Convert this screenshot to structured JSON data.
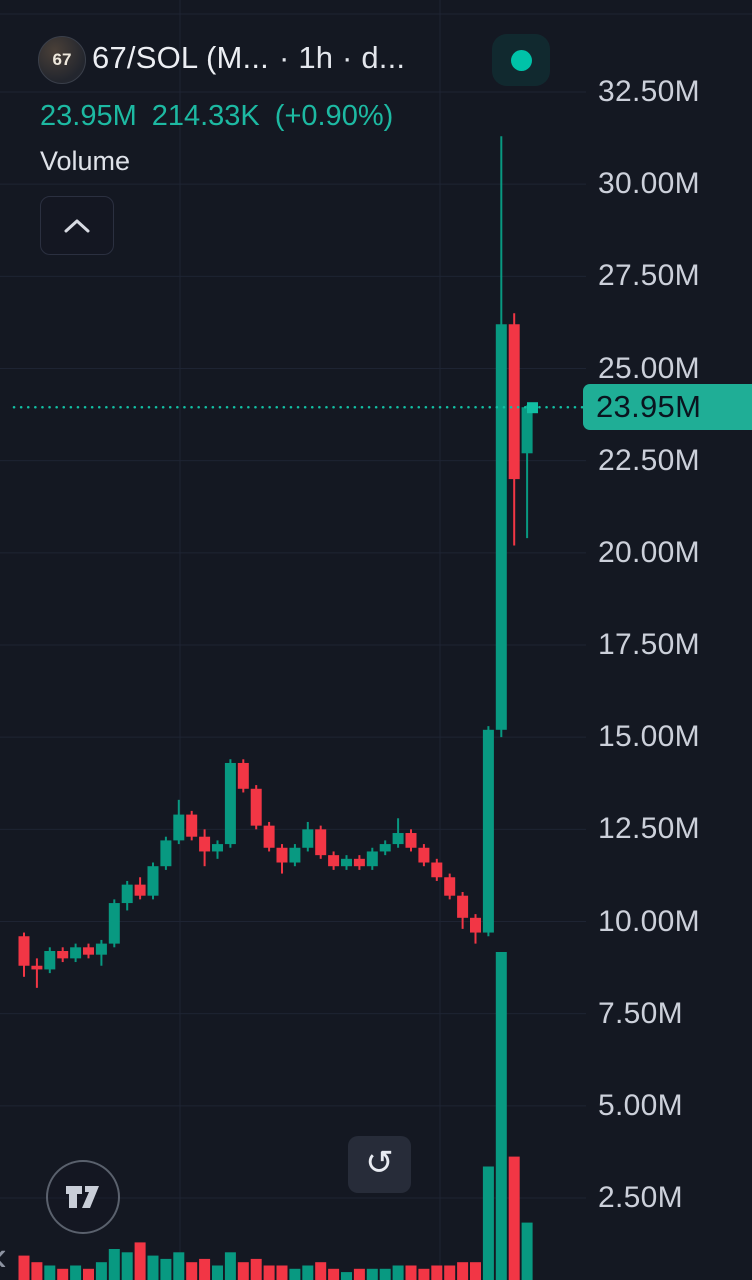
{
  "colors": {
    "background": "#141822",
    "grid": "#1e2433",
    "up": "#089981",
    "down": "#f23645",
    "accent": "#1db9a2",
    "dotted_line": "#12bfa3",
    "axis_text": "#ccd0da",
    "badge_bg": "#1fae96",
    "badge_text": "#0a141f"
  },
  "header": {
    "symbol_badge": "67",
    "title": "67/SOL (M...",
    "subtitle": "· 1h · d...",
    "status": "live"
  },
  "stats": {
    "price": "23.95M",
    "change_abs": "214.33K",
    "change_pct": "(+0.90%)"
  },
  "indicator_label": "Volume",
  "controls": {
    "collapse_icon": "chevron-up",
    "refresh_icon": "↺",
    "back_icon": "‹",
    "logo": "tradingview"
  },
  "chart_data": {
    "type": "candlestick",
    "symbol": "67/SOL",
    "interval": "1h",
    "legend": [
      "Volume"
    ],
    "grid": true,
    "y_axis_side": "right",
    "ylim": [
      0.6,
      33.8
    ],
    "y_ticks": [
      {
        "label": "32.50M",
        "value": 32.5
      },
      {
        "label": "30.00M",
        "value": 30.0
      },
      {
        "label": "27.50M",
        "value": 27.5
      },
      {
        "label": "25.00M",
        "value": 25.0
      },
      {
        "label": "22.50M",
        "value": 22.5
      },
      {
        "label": "20.00M",
        "value": 20.0
      },
      {
        "label": "17.50M",
        "value": 17.5
      },
      {
        "label": "15.00M",
        "value": 15.0
      },
      {
        "label": "12.50M",
        "value": 12.5
      },
      {
        "label": "10.00M",
        "value": 10.0
      },
      {
        "label": "7.50M",
        "value": 7.5
      },
      {
        "label": "5.00M",
        "value": 5.0
      },
      {
        "label": "2.50M",
        "value": 2.5
      }
    ],
    "current_price": {
      "value": 23.95,
      "label": "23.95M"
    },
    "candles_ohlc_millions": [
      [
        9.6,
        9.7,
        8.5,
        8.8
      ],
      [
        8.8,
        9.0,
        8.2,
        8.7
      ],
      [
        8.7,
        9.3,
        8.6,
        9.2
      ],
      [
        9.2,
        9.3,
        8.9,
        9.0
      ],
      [
        9.0,
        9.4,
        8.9,
        9.3
      ],
      [
        9.3,
        9.4,
        9.0,
        9.1
      ],
      [
        9.1,
        9.5,
        8.8,
        9.4
      ],
      [
        9.4,
        10.6,
        9.3,
        10.5
      ],
      [
        10.5,
        11.1,
        10.3,
        11.0
      ],
      [
        11.0,
        11.2,
        10.6,
        10.7
      ],
      [
        10.7,
        11.6,
        10.6,
        11.5
      ],
      [
        11.5,
        12.3,
        11.4,
        12.2
      ],
      [
        12.2,
        13.3,
        12.1,
        12.9
      ],
      [
        12.9,
        13.0,
        12.2,
        12.3
      ],
      [
        12.3,
        12.5,
        11.5,
        11.9
      ],
      [
        11.9,
        12.2,
        11.7,
        12.1
      ],
      [
        12.1,
        14.4,
        12.0,
        14.3
      ],
      [
        14.3,
        14.4,
        13.5,
        13.6
      ],
      [
        13.6,
        13.7,
        12.5,
        12.6
      ],
      [
        12.6,
        12.7,
        11.9,
        12.0
      ],
      [
        12.0,
        12.1,
        11.3,
        11.6
      ],
      [
        11.6,
        12.1,
        11.5,
        12.0
      ],
      [
        12.0,
        12.7,
        11.9,
        12.5
      ],
      [
        12.5,
        12.6,
        11.7,
        11.8
      ],
      [
        11.8,
        11.9,
        11.4,
        11.5
      ],
      [
        11.5,
        11.8,
        11.4,
        11.7
      ],
      [
        11.7,
        11.8,
        11.4,
        11.5
      ],
      [
        11.5,
        12.0,
        11.4,
        11.9
      ],
      [
        11.9,
        12.2,
        11.8,
        12.1
      ],
      [
        12.1,
        12.8,
        12.0,
        12.4
      ],
      [
        12.4,
        12.5,
        11.9,
        12.0
      ],
      [
        12.0,
        12.1,
        11.5,
        11.6
      ],
      [
        11.6,
        11.7,
        11.1,
        11.2
      ],
      [
        11.2,
        11.3,
        10.6,
        10.7
      ],
      [
        10.7,
        10.8,
        9.8,
        10.1
      ],
      [
        10.1,
        10.2,
        9.4,
        9.7
      ],
      [
        9.7,
        15.3,
        9.6,
        15.2
      ],
      [
        15.2,
        31.3,
        15.0,
        26.2
      ],
      [
        26.2,
        26.5,
        20.2,
        22.0
      ],
      [
        22.7,
        24.0,
        20.4,
        23.95
      ]
    ],
    "volume_relative": [
      8,
      6,
      5,
      4,
      5,
      4,
      6,
      10,
      9,
      12,
      8,
      7,
      9,
      6,
      7,
      5,
      9,
      6,
      7,
      5,
      5,
      4,
      5,
      6,
      4,
      3,
      4,
      4,
      4,
      5,
      5,
      4,
      5,
      5,
      6,
      6,
      35,
      100,
      38,
      18
    ]
  }
}
